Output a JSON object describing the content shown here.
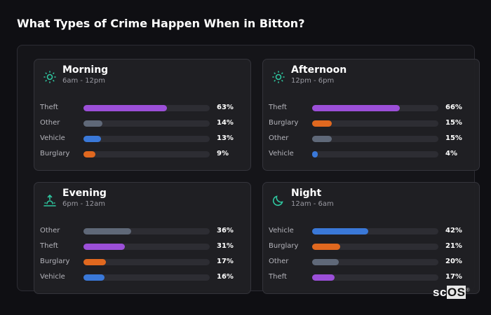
{
  "title": "What Types of Crime Happen When in Bitton?",
  "colors": {
    "Theft": "#9b4fd8",
    "Other": "#5f6878",
    "Vehicle": "#3a78d8",
    "Burglary": "#e0681f",
    "accent": "#2fc7a0"
  },
  "cards": [
    {
      "name": "Morning",
      "range": "6am - 12pm",
      "icon": "sun-icon",
      "rows": [
        {
          "label": "Theft",
          "pct": 63,
          "text": "63%"
        },
        {
          "label": "Other",
          "pct": 14,
          "text": "14%"
        },
        {
          "label": "Vehicle",
          "pct": 13,
          "text": "13%"
        },
        {
          "label": "Burglary",
          "pct": 9,
          "text": "9%"
        }
      ]
    },
    {
      "name": "Afternoon",
      "range": "12pm - 6pm",
      "icon": "sun-icon",
      "rows": [
        {
          "label": "Theft",
          "pct": 66,
          "text": "66%"
        },
        {
          "label": "Burglary",
          "pct": 15,
          "text": "15%"
        },
        {
          "label": "Other",
          "pct": 15,
          "text": "15%"
        },
        {
          "label": "Vehicle",
          "pct": 4,
          "text": "4%"
        }
      ]
    },
    {
      "name": "Evening",
      "range": "6pm - 12am",
      "icon": "sunset-icon",
      "rows": [
        {
          "label": "Other",
          "pct": 36,
          "text": "36%"
        },
        {
          "label": "Theft",
          "pct": 31,
          "text": "31%"
        },
        {
          "label": "Burglary",
          "pct": 17,
          "text": "17%"
        },
        {
          "label": "Vehicle",
          "pct": 16,
          "text": "16%"
        }
      ]
    },
    {
      "name": "Night",
      "range": "12am - 6am",
      "icon": "moon-icon",
      "rows": [
        {
          "label": "Vehicle",
          "pct": 42,
          "text": "42%"
        },
        {
          "label": "Burglary",
          "pct": 21,
          "text": "21%"
        },
        {
          "label": "Other",
          "pct": 20,
          "text": "20%"
        },
        {
          "label": "Theft",
          "pct": 17,
          "text": "17%"
        }
      ]
    }
  ],
  "logo": {
    "part1": "sc",
    "part2": "OS",
    "mark": "®"
  }
}
